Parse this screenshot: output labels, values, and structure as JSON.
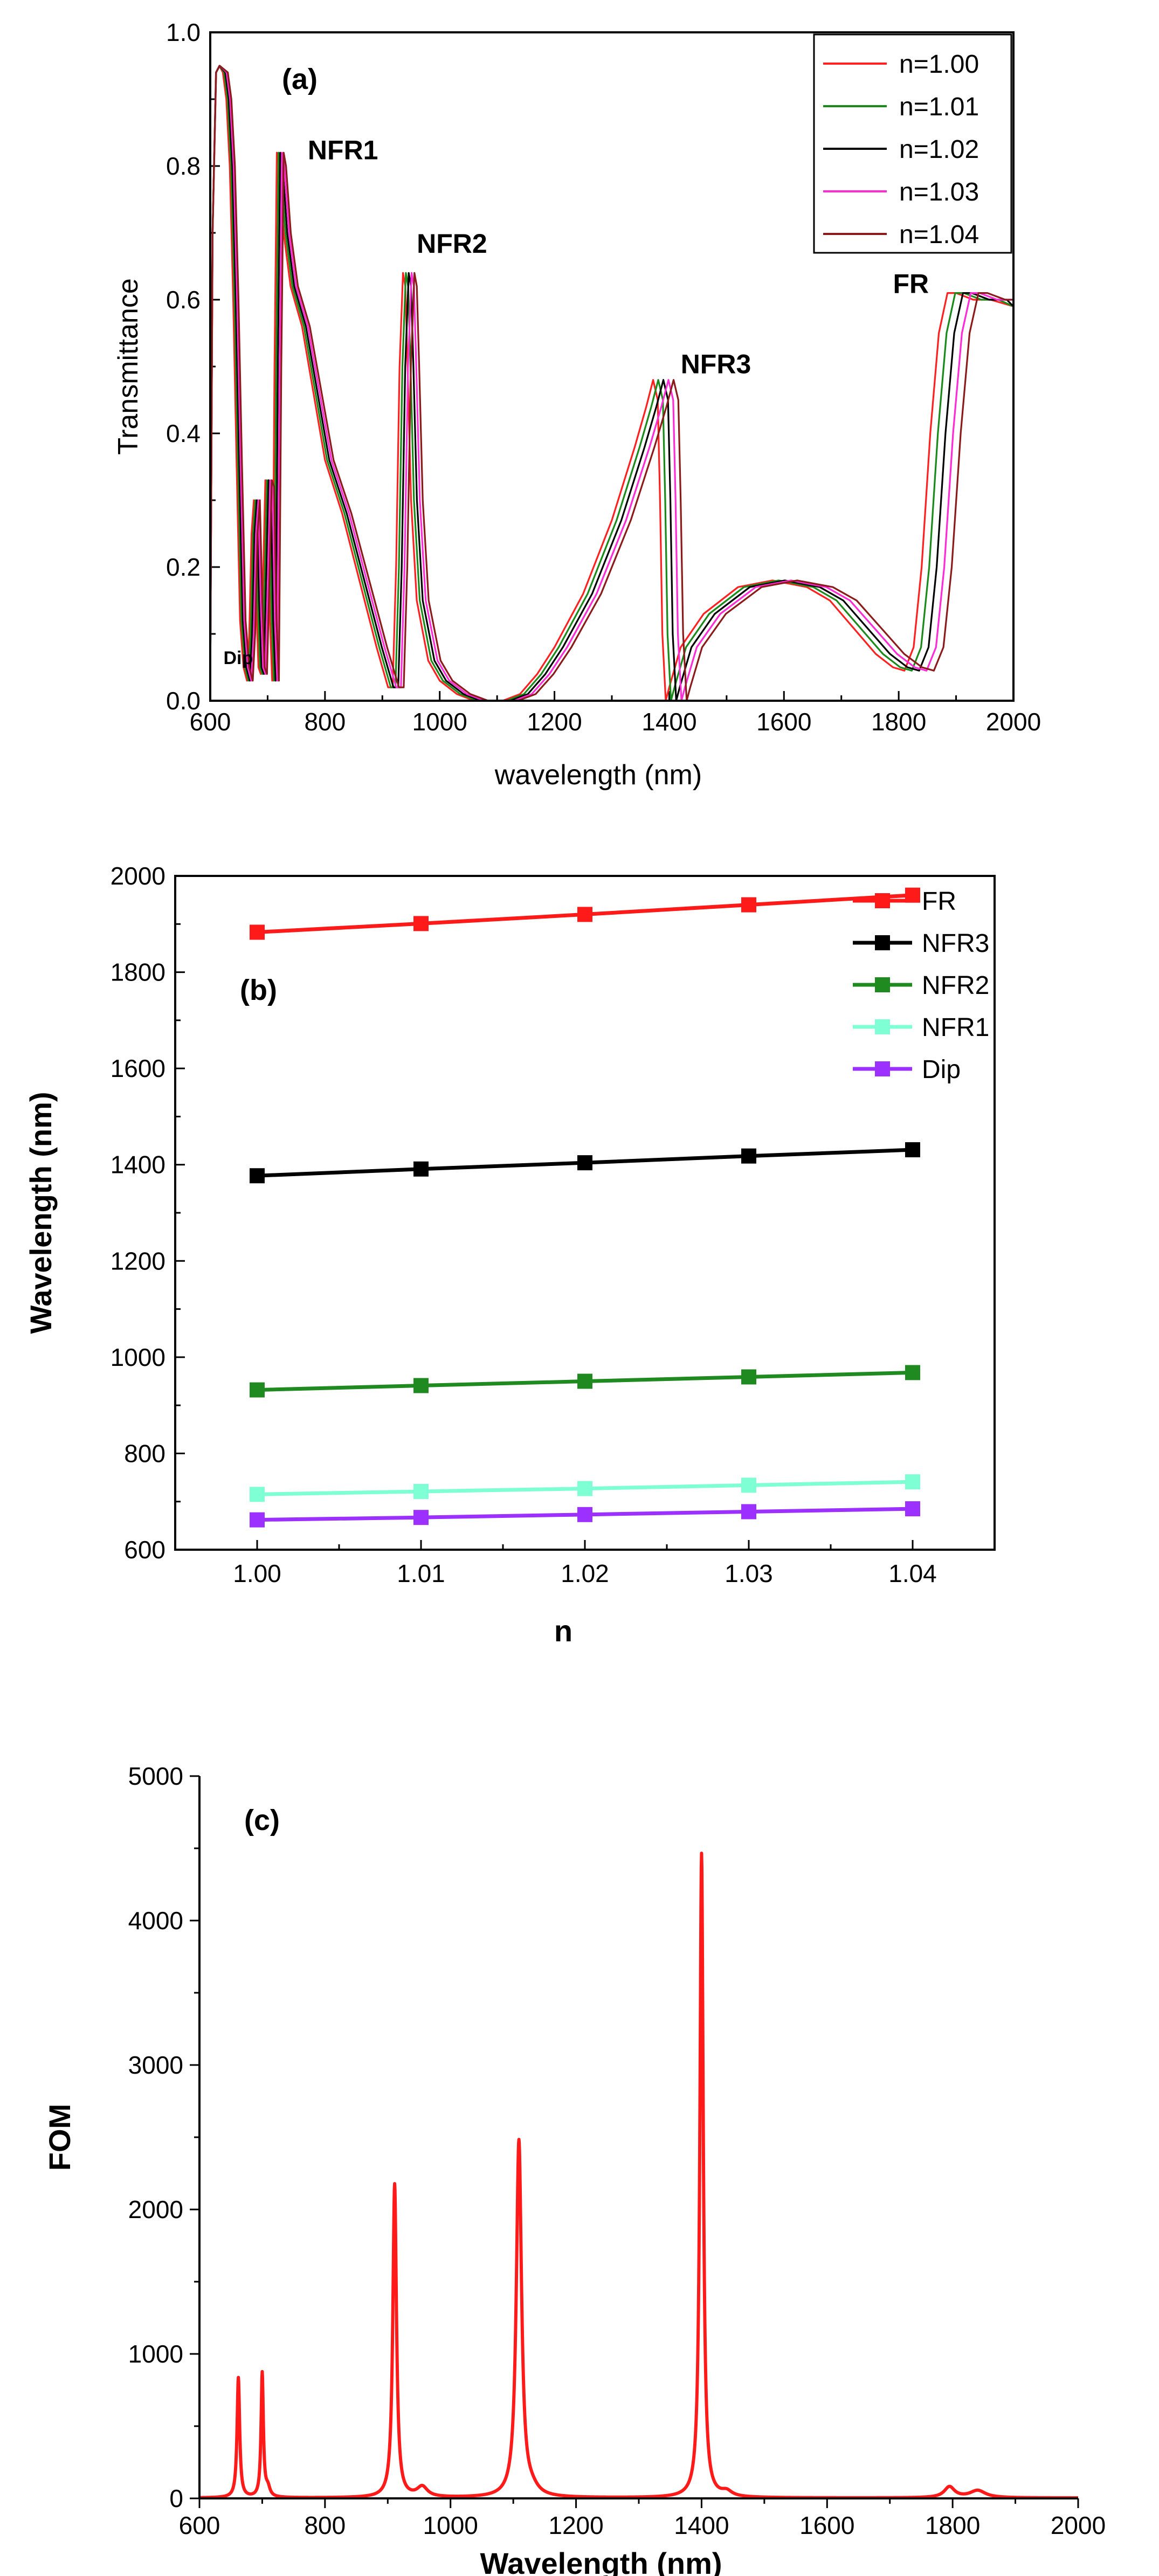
{
  "chart_data": [
    {
      "panel": "(a)",
      "type": "line",
      "xlabel": "wavelength (nm)",
      "ylabel": "Transmittance",
      "xlim": [
        600,
        2000
      ],
      "ylim": [
        0.0,
        1.0
      ],
      "xticks": [
        "600",
        "800",
        "1000",
        "1200",
        "1400",
        "1600",
        "1800",
        "2000"
      ],
      "yticks": [
        "0.0",
        "0.2",
        "0.4",
        "0.6",
        "0.8",
        "1.0"
      ],
      "legend_position": "top-right",
      "annotations": [
        {
          "text": "NFR1",
          "x": 770,
          "y": 0.81
        },
        {
          "text": "NFR2",
          "x": 960,
          "y": 0.67
        },
        {
          "text": "NFR3",
          "x": 1420,
          "y": 0.49
        },
        {
          "text": "FR",
          "x": 1790,
          "y": 0.61
        },
        {
          "text": "Dip",
          "x": 623,
          "y": 0.055
        }
      ],
      "series": [
        {
          "name": "n=1.00",
          "color": "#ff2020",
          "shift": 0
        },
        {
          "name": "n=1.01",
          "color": "#1a8a1a",
          "shift": 13
        },
        {
          "name": "n=1.02",
          "color": "#000000",
          "shift": 26
        },
        {
          "name": "n=1.03",
          "color": "#ff2bd6",
          "shift": 39
        },
        {
          "name": "n=1.04",
          "color": "#8b1a1a",
          "shift": 52
        }
      ],
      "base_curve": {
        "x": [
          600,
          604,
          610,
          616,
          622,
          628,
          634,
          640,
          646,
          652,
          658,
          664,
          668,
          672,
          676,
          680,
          684,
          688,
          692,
          696,
          700,
          704,
          708,
          712,
          716,
          720,
          728,
          740,
          760,
          780,
          800,
          830,
          860,
          890,
          910,
          918,
          924,
          930,
          936,
          940,
          944,
          950,
          960,
          980,
          1000,
          1030,
          1060,
          1090,
          1110,
          1125,
          1140,
          1170,
          1200,
          1250,
          1300,
          1340,
          1360,
          1372,
          1380,
          1384,
          1388,
          1394,
          1400,
          1420,
          1460,
          1520,
          1580,
          1640,
          1680,
          1720,
          1760,
          1790,
          1810,
          1826,
          1840,
          1855,
          1870,
          1885,
          1900,
          1930,
          1960,
          2000
        ],
        "y": [
          0.02,
          0.7,
          0.94,
          0.95,
          0.94,
          0.9,
          0.8,
          0.6,
          0.35,
          0.12,
          0.05,
          0.03,
          0.1,
          0.25,
          0.3,
          0.15,
          0.05,
          0.04,
          0.18,
          0.33,
          0.32,
          0.12,
          0.03,
          0.5,
          0.82,
          0.8,
          0.7,
          0.62,
          0.56,
          0.46,
          0.36,
          0.28,
          0.18,
          0.08,
          0.02,
          0.02,
          0.2,
          0.5,
          0.64,
          0.62,
          0.5,
          0.3,
          0.15,
          0.06,
          0.03,
          0.01,
          0.0,
          0.0,
          0.0,
          0.005,
          0.01,
          0.04,
          0.08,
          0.16,
          0.27,
          0.38,
          0.44,
          0.48,
          0.45,
          0.3,
          0.1,
          0.0,
          0.02,
          0.08,
          0.13,
          0.17,
          0.18,
          0.17,
          0.15,
          0.11,
          0.07,
          0.05,
          0.045,
          0.08,
          0.2,
          0.4,
          0.55,
          0.61,
          0.61,
          0.6,
          0.6,
          0.59
        ]
      }
    },
    {
      "panel": "(b)",
      "type": "line",
      "xlabel": "n",
      "ylabel": "Wavelength (nm)",
      "xlim": [
        0.995,
        1.045
      ],
      "ylim": [
        600,
        2000
      ],
      "xticks": [
        "1.00",
        "1.01",
        "1.02",
        "1.03",
        "1.04"
      ],
      "yticks": [
        "600",
        "800",
        "1000",
        "1200",
        "1400",
        "1600",
        "1800",
        "2000"
      ],
      "legend_position": "top-right",
      "x": [
        1.0,
        1.01,
        1.02,
        1.03,
        1.04
      ],
      "series": [
        {
          "name": "FR",
          "color": "#ff1a1a",
          "values": [
            1883,
            1901,
            1920,
            1940,
            1960
          ]
        },
        {
          "name": "NFR3",
          "color": "#000000",
          "values": [
            1377,
            1391,
            1404,
            1418,
            1431
          ]
        },
        {
          "name": "NFR2",
          "color": "#1f8a1f",
          "values": [
            932,
            941,
            950,
            959,
            968
          ]
        },
        {
          "name": "NFR1",
          "color": "#7fffd4",
          "values": [
            715,
            721,
            727,
            734,
            741
          ]
        },
        {
          "name": "Dip",
          "color": "#9b30ff",
          "values": [
            662,
            667,
            673,
            679,
            685
          ]
        }
      ]
    },
    {
      "panel": "(c)",
      "type": "line",
      "xlabel": "Wavelength (nm)",
      "ylabel": "FOM",
      "xlim": [
        600,
        2000
      ],
      "ylim": [
        0,
        5000
      ],
      "xticks": [
        "600",
        "800",
        "1000",
        "1200",
        "1400",
        "1600",
        "1800",
        "2000"
      ],
      "yticks": [
        "0",
        "1000",
        "2000",
        "3000",
        "4000",
        "5000"
      ],
      "color": "#ff1a1a",
      "peaks": [
        {
          "x": 662,
          "y": 830,
          "width": 2.5
        },
        {
          "x": 700,
          "y": 860,
          "width": 2.2
        },
        {
          "x": 911,
          "y": 2170,
          "width": 3.5
        },
        {
          "x": 1109,
          "y": 2470,
          "width": 5
        },
        {
          "x": 1400,
          "y": 4460,
          "width": 3.2
        }
      ],
      "bumps": [
        {
          "x": 709,
          "y": 60,
          "width": 4
        },
        {
          "x": 955,
          "y": 70,
          "width": 10
        },
        {
          "x": 1130,
          "y": 40,
          "width": 12
        },
        {
          "x": 1440,
          "y": 35,
          "width": 10
        },
        {
          "x": 1795,
          "y": 75,
          "width": 10
        },
        {
          "x": 1840,
          "y": 50,
          "width": 15
        }
      ]
    }
  ]
}
